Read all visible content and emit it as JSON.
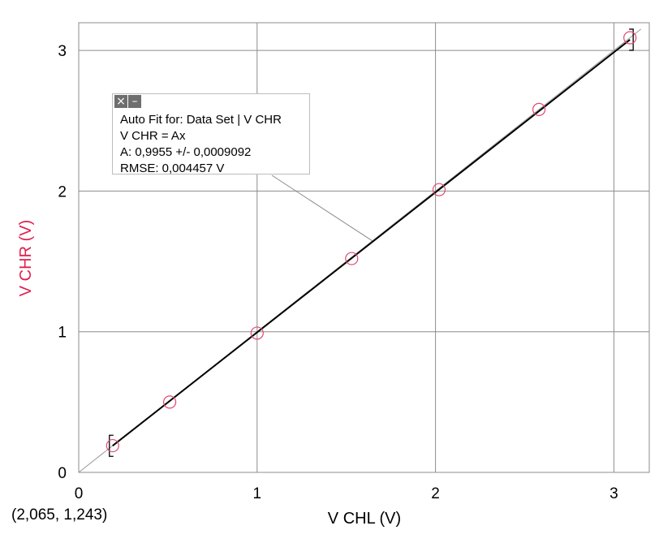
{
  "chart_data": {
    "type": "scatter",
    "xlabel": "V CHL (V)",
    "ylabel": "V CHR (V)",
    "xlim": [
      0,
      3.2
    ],
    "ylim": [
      0,
      3.2
    ],
    "x_ticks": [
      0,
      1,
      2,
      3
    ],
    "y_ticks": [
      0,
      1,
      2,
      3
    ],
    "grid": true,
    "series": [
      {
        "x": [
          0.19,
          0.51,
          1.0,
          1.53,
          2.02,
          2.58,
          3.09
        ],
        "y": [
          0.19,
          0.5,
          0.99,
          1.52,
          2.01,
          2.58,
          3.09
        ],
        "color": "#e0486e",
        "marker": "open-circle"
      }
    ],
    "fit": {
      "slope": 0.9955,
      "x_range": [
        0.19,
        3.09
      ],
      "color": "#000000"
    }
  },
  "fit_box": {
    "line1": "Auto Fit for: Data Set | V CHR",
    "line2": "V CHR = Ax",
    "line3": "A: 0,9955 +/- 0,0009092",
    "line4": "RMSE: 0,004457 V",
    "close_glyph": "×",
    "minimize_glyph": "–"
  },
  "coord_readout": "(2,065, 1,243)",
  "colors": {
    "ylabel": "#e0204e",
    "xlabel": "#000000",
    "grid": "#8c8c8c",
    "frame": "#8c8c8c"
  }
}
